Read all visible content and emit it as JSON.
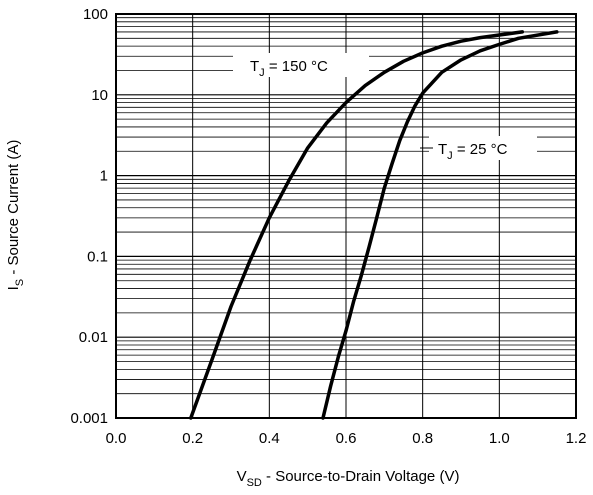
{
  "chart_data": {
    "type": "line",
    "xlabel": {
      "main": "V",
      "sub": "SD",
      "rest": " - Source-to-Drain Voltage (V)"
    },
    "ylabel": {
      "main": "I",
      "sub": "S",
      "rest": " - Source Current (A)"
    },
    "xlim": [
      0.0,
      1.2
    ],
    "ylim": [
      0.001,
      100
    ],
    "yscale": "log",
    "grid": true,
    "x_ticks": [
      "0.0",
      "0.2",
      "0.4",
      "0.6",
      "0.8",
      "1.0",
      "1.2"
    ],
    "y_ticks": [
      "0.001",
      "0.01",
      "0.1",
      "1",
      "10",
      "100"
    ],
    "series": [
      {
        "label": {
          "main": "T",
          "sub": "J",
          "rest": " = 150 °C"
        },
        "points": [
          [
            0.195,
            0.001
          ],
          [
            0.25,
            0.0052
          ],
          [
            0.3,
            0.024
          ],
          [
            0.35,
            0.09
          ],
          [
            0.4,
            0.3
          ],
          [
            0.45,
            0.85
          ],
          [
            0.5,
            2.2
          ],
          [
            0.55,
            4.5
          ],
          [
            0.6,
            8.0
          ],
          [
            0.65,
            13
          ],
          [
            0.7,
            19
          ],
          [
            0.75,
            26
          ],
          [
            0.8,
            33
          ],
          [
            0.85,
            40
          ],
          [
            0.9,
            46
          ],
          [
            0.95,
            51
          ],
          [
            1.0,
            55
          ],
          [
            1.06,
            60
          ]
        ]
      },
      {
        "label": {
          "main": "T",
          "sub": "J",
          "rest": " = 25 °C"
        },
        "points": [
          [
            0.54,
            0.001
          ],
          [
            0.56,
            0.0025
          ],
          [
            0.58,
            0.0057
          ],
          [
            0.6,
            0.012
          ],
          [
            0.62,
            0.028
          ],
          [
            0.64,
            0.058
          ],
          [
            0.66,
            0.13
          ],
          [
            0.68,
            0.3
          ],
          [
            0.7,
            0.7
          ],
          [
            0.72,
            1.4
          ],
          [
            0.74,
            2.7
          ],
          [
            0.76,
            4.6
          ],
          [
            0.78,
            7.3
          ],
          [
            0.8,
            10.5
          ],
          [
            0.85,
            19
          ],
          [
            0.9,
            27
          ],
          [
            0.95,
            35
          ],
          [
            1.0,
            42
          ],
          [
            1.05,
            50
          ],
          [
            1.15,
            60
          ]
        ]
      }
    ]
  }
}
